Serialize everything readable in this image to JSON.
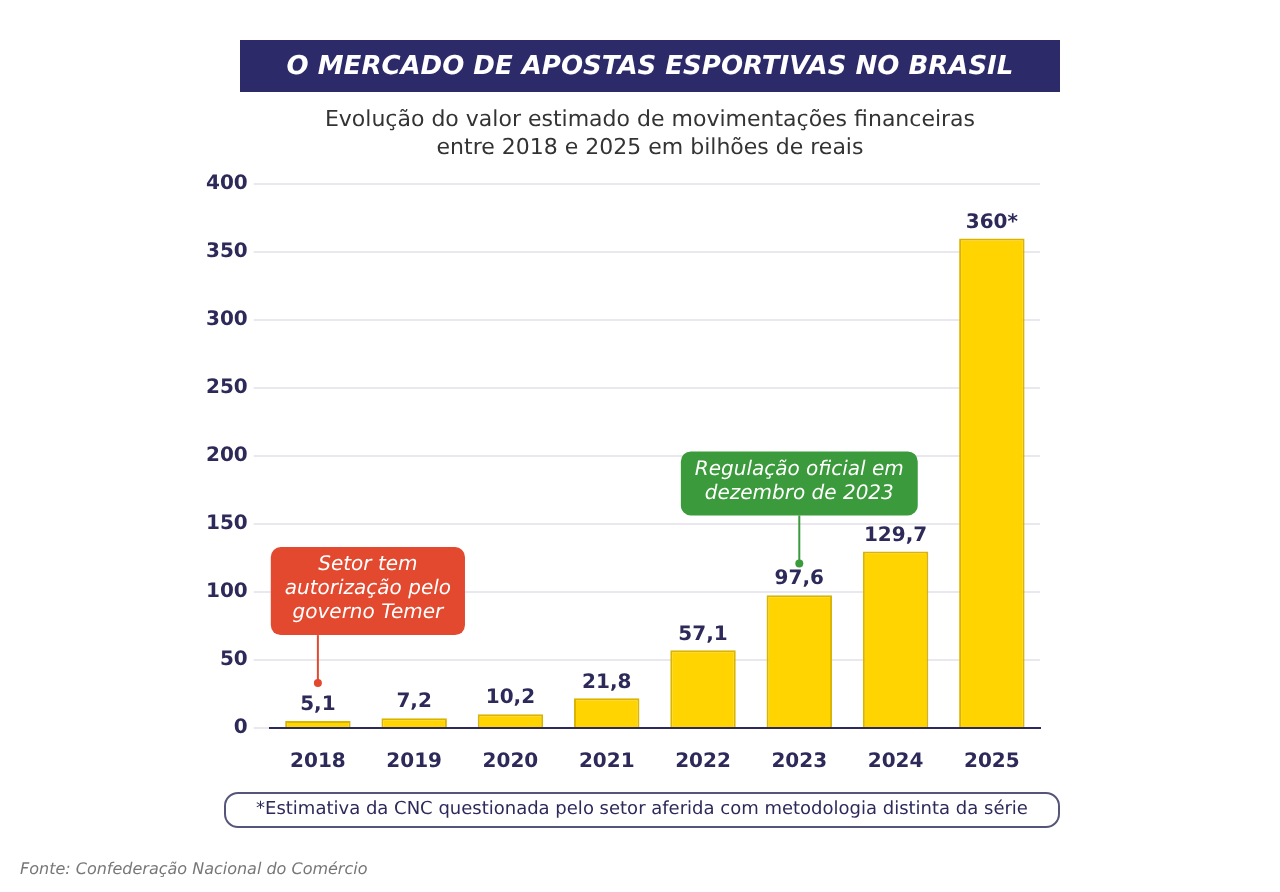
{
  "chart_data": {
    "type": "bar",
    "title": "O MERCADO DE APOSTAS ESPORTIVAS NO BRASIL",
    "subtitle": "Evolução do valor estimado de movimentações financeiras entre 2018 e 2025 em bilhões de reais",
    "categories": [
      "2018",
      "2019",
      "2020",
      "2021",
      "2022",
      "2023",
      "2024",
      "2025"
    ],
    "values": [
      5.1,
      7.2,
      10.2,
      21.8,
      57.1,
      97.6,
      129.7,
      360
    ],
    "value_labels": [
      "5,1",
      "7,2",
      "10,2",
      "21,8",
      "57,1",
      "97,6",
      "129,7",
      "360*"
    ],
    "color": "#ffd400",
    "ylim": [
      0,
      400
    ],
    "yticks": [
      0,
      50,
      100,
      150,
      200,
      250,
      300,
      350,
      400
    ],
    "grid": "y",
    "annotations": [
      {
        "text": "Setor tem autorização pelo governo Temer",
        "x": "2018",
        "y": 33
      },
      {
        "text": "Regulação oficial em dezembro de 2023",
        "x": "2023",
        "y": 121
      },
      "*Estimativa da CNC questionada pelo setor aferida com metodologia distinta da série",
      "Fonte: Confederação Nacional do Comércio"
    ]
  }
}
